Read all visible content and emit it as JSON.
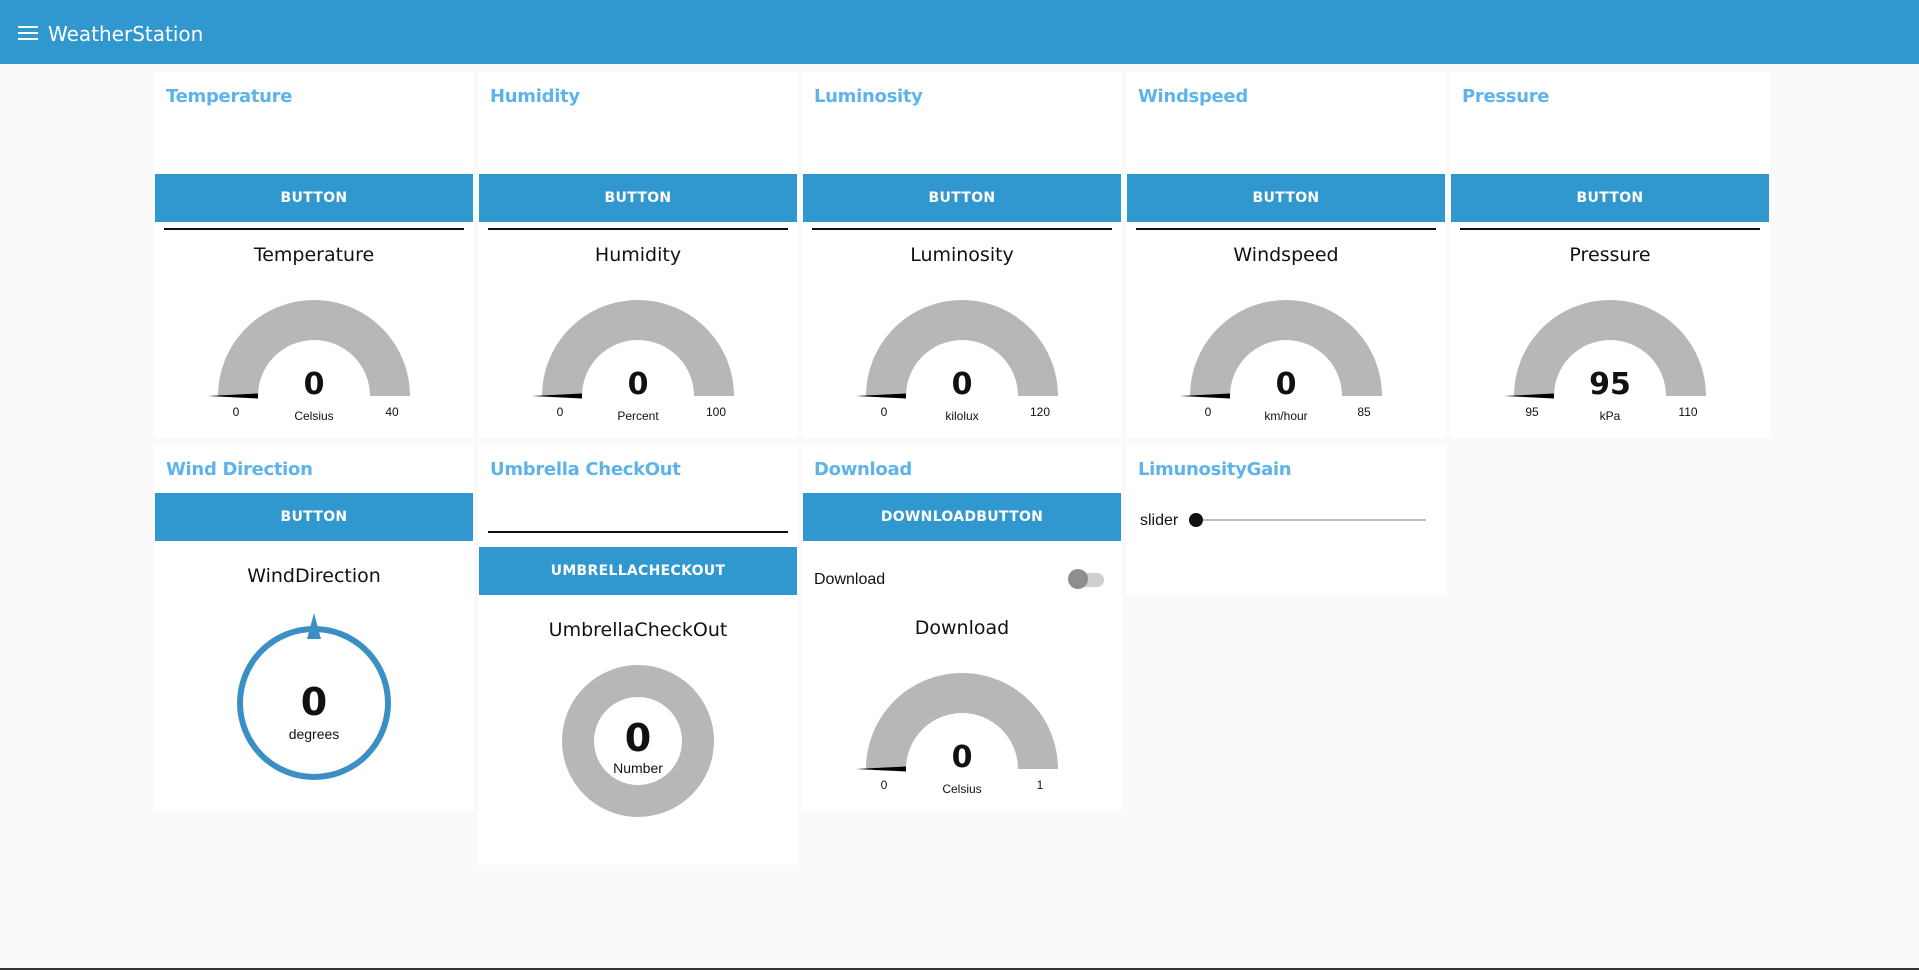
{
  "app": {
    "title": "WeatherStation"
  },
  "colors": {
    "accent": "#3197cf",
    "title": "#5eb4ea",
    "gauge_track": "#b7b7b7",
    "compass": "#3a8fc5"
  },
  "cards": {
    "temperature": {
      "title": "Temperature",
      "input_value": "",
      "button_label": "BUTTON",
      "gauge": {
        "label": "Temperature",
        "value": 0,
        "value_text": "0",
        "units": "Celsius",
        "min": 0,
        "max": 40,
        "min_text": "0",
        "max_text": "40"
      }
    },
    "humidity": {
      "title": "Humidity",
      "input_value": "",
      "button_label": "BUTTON",
      "gauge": {
        "label": "Humidity",
        "value": 0,
        "value_text": "0",
        "units": "Percent",
        "min": 0,
        "max": 100,
        "min_text": "0",
        "max_text": "100"
      }
    },
    "luminosity": {
      "title": "Luminosity",
      "input_value": "",
      "button_label": "BUTTON",
      "gauge": {
        "label": "Luminosity",
        "value": 0,
        "value_text": "0",
        "units": "kilolux",
        "min": 0,
        "max": 120,
        "min_text": "0",
        "max_text": "120"
      }
    },
    "windspeed": {
      "title": "Windspeed",
      "input_value": "",
      "button_label": "BUTTON",
      "gauge": {
        "label": "Windspeed",
        "value": 0,
        "value_text": "0",
        "units": "km/hour",
        "min": 0,
        "max": 85,
        "min_text": "0",
        "max_text": "85"
      }
    },
    "pressure": {
      "title": "Pressure",
      "input_value": "",
      "button_label": "BUTTON",
      "gauge": {
        "label": "Pressure",
        "value": 95,
        "value_text": "95",
        "units": "kPa",
        "min": 95,
        "max": 110,
        "min_text": "95",
        "max_text": "110"
      }
    },
    "wind_direction": {
      "title": "Wind Direction",
      "button_label": "BUTTON",
      "compass": {
        "label": "WindDirection",
        "value": 0,
        "value_text": "0",
        "units": "degrees"
      }
    },
    "umbrella": {
      "title": "Umbrella CheckOut",
      "input_value": "",
      "button_label": "UMBRELLACHECKOUT",
      "donut": {
        "label": "UmbrellaCheckOut",
        "value": 0,
        "value_text": "0",
        "units": "Number"
      }
    },
    "download": {
      "title": "Download",
      "button_label": "DOWNLOADBUTTON",
      "switch_label": "Download",
      "switch_on": false,
      "gauge": {
        "label": "Download",
        "value": 0,
        "value_text": "0",
        "units": "Celsius",
        "min": 0,
        "max": 1,
        "min_text": "0",
        "max_text": "1"
      }
    },
    "luminosity_gain": {
      "title": "LimunosityGain",
      "slider_label": "slider",
      "slider_value": 0
    }
  }
}
